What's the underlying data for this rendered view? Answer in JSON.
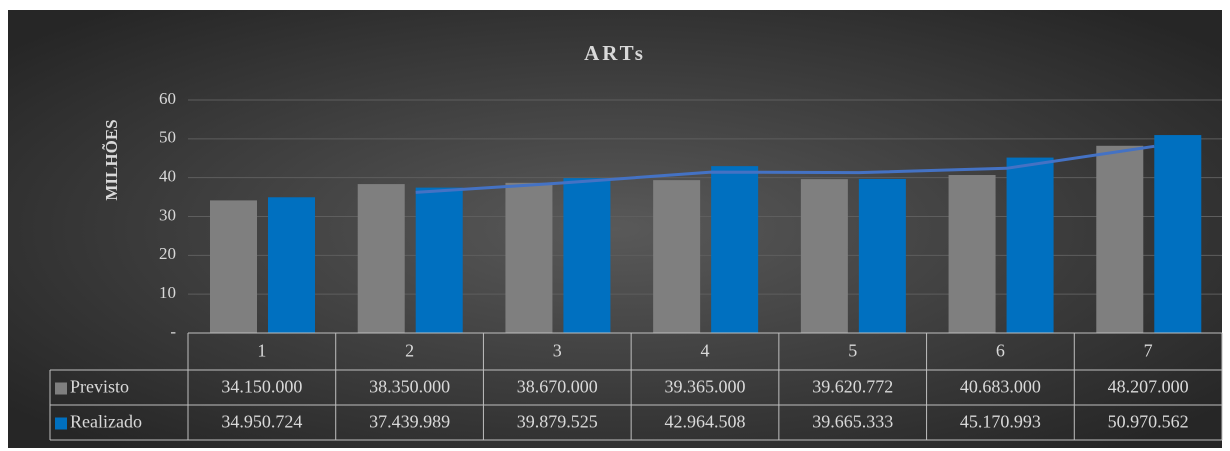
{
  "chart_data": {
    "type": "bar",
    "title": "ARTs",
    "ylabel": "MILHÕES",
    "categories": [
      "1",
      "2",
      "3",
      "4",
      "5",
      "6",
      "7"
    ],
    "series": [
      {
        "name": "Previsto",
        "color": "#7f7f7f",
        "values": [
          34.15,
          38.35,
          38.67,
          39.365,
          39.620772,
          40.683,
          48.207
        ],
        "value_labels": [
          "34.150.000",
          "38.350.000",
          "38.670.000",
          "39.365.000",
          "39.620.772",
          "40.683.000",
          "48.207.000"
        ]
      },
      {
        "name": "Realizado",
        "color": "#0070c0",
        "values": [
          34.950724,
          37.439989,
          39.879525,
          42.964508,
          39.665333,
          45.170993,
          50.970562
        ],
        "value_labels": [
          "34.950.724",
          "37.439.989",
          "39.879.525",
          "42.964.508",
          "39.665.333",
          "45.170.993",
          "50.970.562"
        ]
      }
    ],
    "trendline": {
      "kind": "moving_average",
      "period": 2,
      "series": 1,
      "color": "#4472c4"
    },
    "ylim": [
      0,
      60
    ],
    "yticks": [
      {
        "value": 0,
        "label": "-"
      },
      10,
      20,
      30,
      40,
      50,
      60
    ],
    "grid": true,
    "data_table": true
  }
}
